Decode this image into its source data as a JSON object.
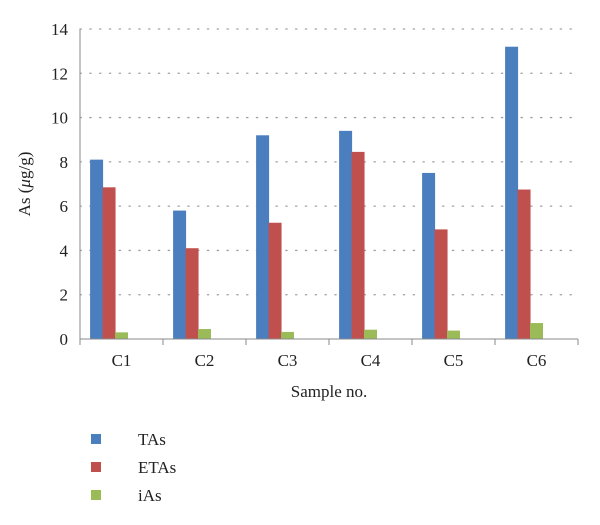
{
  "chart_data": {
    "type": "bar",
    "categories": [
      "C1",
      "C2",
      "C3",
      "C4",
      "C5",
      "C6"
    ],
    "series": [
      {
        "name": "TAs",
        "color": "#4a7ebf",
        "values": [
          8.1,
          5.8,
          9.2,
          9.4,
          7.5,
          13.2
        ]
      },
      {
        "name": "ETAs",
        "color": "#c0504d",
        "values": [
          6.85,
          4.1,
          5.25,
          8.45,
          4.95,
          6.75
        ]
      },
      {
        "name": "iAs",
        "color": "#9bbb59",
        "values": [
          0.3,
          0.45,
          0.32,
          0.42,
          0.38,
          0.72
        ]
      }
    ],
    "xlabel": "Sample no.",
    "ylabel_prefix": "As (",
    "ylabel_mu": "μ",
    "ylabel_suffix": "g/g)",
    "ylim": [
      0,
      14
    ],
    "yticks": [
      0,
      2,
      4,
      6,
      8,
      10,
      12,
      14
    ],
    "grid": "dotted horizontal",
    "legend_position": "bottom-left"
  }
}
